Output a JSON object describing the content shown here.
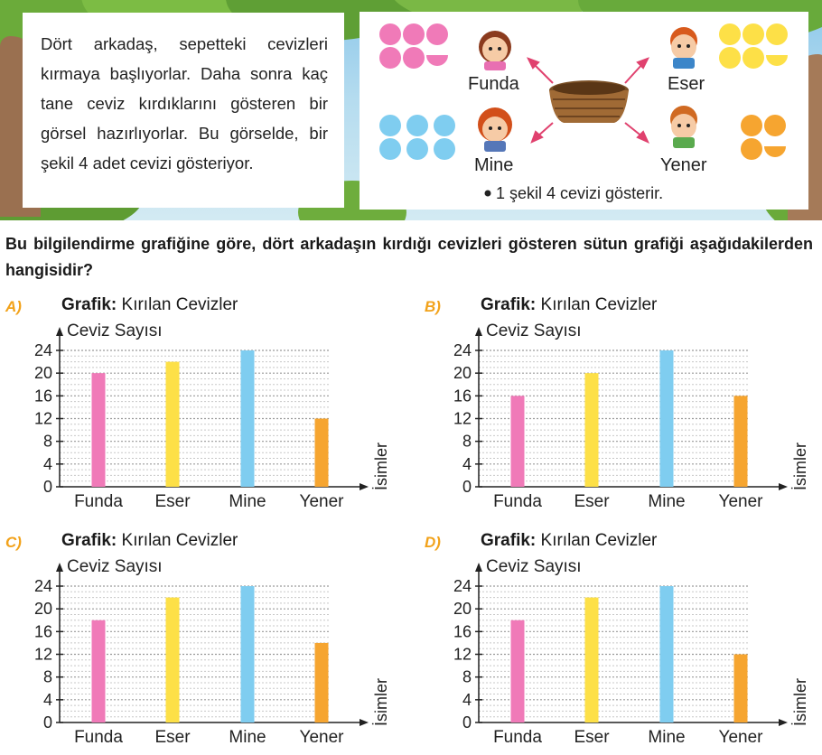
{
  "intro": {
    "text": "Dört arkadaş, sepetteki cevizleri kırmaya başlıyorlar. Daha sonra kaç tane ceviz kırdıklarını gösteren bir görsel hazırlıyorlar. Bu görselde, bir şekil 4 adet cevizi gösteriyor."
  },
  "info": {
    "kids": [
      "Funda",
      "Eser",
      "Mine",
      "Yener"
    ],
    "note": "1 şekil 4 cevizi gösterir.",
    "colors": {
      "Funda": "#f07ab8",
      "Eser": "#fde047",
      "Mine": "#7fcdf0",
      "Yener": "#f6a530"
    },
    "shapes": {
      "Funda": 5.5,
      "Eser": 5.5,
      "Mine": 6,
      "Yener": 3.5
    }
  },
  "question": {
    "text": "Bu bilgilendirme grafiğine göre, dört arkadaşın kırdığı cevizleri gösteren sütun grafiği aşağıdakilerden hangisidir?"
  },
  "options": [
    {
      "letter": "A)",
      "title_bold": "Grafik:",
      "title": "Kırılan Cevizler"
    },
    {
      "letter": "B)",
      "title_bold": "Grafik:",
      "title": "Kırılan Cevizler"
    },
    {
      "letter": "C)",
      "title_bold": "Grafik:",
      "title": "Kırılan Cevizler"
    },
    {
      "letter": "D)",
      "title_bold": "Grafik:",
      "title": "Kırılan Cevizler"
    }
  ],
  "chart_data": [
    {
      "type": "bar",
      "title": "Grafik: Kırılan Cevizler",
      "ylabel": "Ceviz Sayısı",
      "xlabel": "İsimler",
      "categories": [
        "Funda",
        "Eser",
        "Mine",
        "Yener"
      ],
      "values": [
        20,
        22,
        24,
        12
      ],
      "yticks": [
        0,
        4,
        8,
        12,
        16,
        20,
        24
      ],
      "ylim": [
        0,
        24
      ],
      "grid": true,
      "colors": [
        "#f07ab8",
        "#fde047",
        "#7fcdf0",
        "#f6a530"
      ]
    },
    {
      "type": "bar",
      "title": "Grafik: Kırılan Cevizler",
      "ylabel": "Ceviz Sayısı",
      "xlabel": "İsimler",
      "categories": [
        "Funda",
        "Eser",
        "Mine",
        "Yener"
      ],
      "values": [
        16,
        20,
        24,
        16
      ],
      "yticks": [
        0,
        4,
        8,
        12,
        16,
        20,
        24
      ],
      "ylim": [
        0,
        24
      ],
      "grid": true,
      "colors": [
        "#f07ab8",
        "#fde047",
        "#7fcdf0",
        "#f6a530"
      ]
    },
    {
      "type": "bar",
      "title": "Grafik: Kırılan Cevizler",
      "ylabel": "Ceviz Sayısı",
      "xlabel": "İsimler",
      "categories": [
        "Funda",
        "Eser",
        "Mine",
        "Yener"
      ],
      "values": [
        18,
        22,
        24,
        14
      ],
      "yticks": [
        0,
        4,
        8,
        12,
        16,
        20,
        24
      ],
      "ylim": [
        0,
        24
      ],
      "grid": true,
      "colors": [
        "#f07ab8",
        "#fde047",
        "#7fcdf0",
        "#f6a530"
      ]
    },
    {
      "type": "bar",
      "title": "Grafik: Kırılan Cevizler",
      "ylabel": "Ceviz Sayısı",
      "xlabel": "İsimler",
      "categories": [
        "Funda",
        "Eser",
        "Mine",
        "Yener"
      ],
      "values": [
        18,
        22,
        24,
        12
      ],
      "yticks": [
        0,
        4,
        8,
        12,
        16,
        20,
        24
      ],
      "ylim": [
        0,
        24
      ],
      "grid": true,
      "colors": [
        "#f07ab8",
        "#fde047",
        "#7fcdf0",
        "#f6a530"
      ]
    }
  ]
}
